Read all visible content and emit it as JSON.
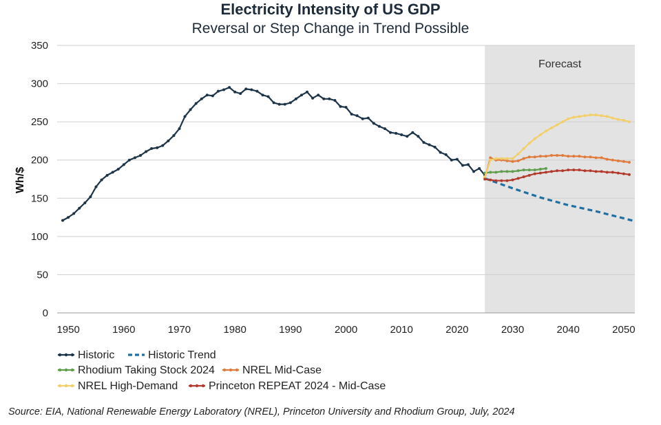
{
  "chart_data": {
    "type": "line",
    "title": "Electricity Intensity of US GDP",
    "subtitle": "Reversal or Step Change in Trend Possible",
    "xlabel": "",
    "ylabel": "Wh/$",
    "xlim": [
      1948,
      2052
    ],
    "ylim": [
      0,
      350
    ],
    "x_ticks": [
      1950,
      1960,
      1970,
      1980,
      1990,
      2000,
      2010,
      2020,
      2030,
      2040,
      2050
    ],
    "y_ticks": [
      0,
      50,
      100,
      150,
      200,
      250,
      300,
      350
    ],
    "grid": "horizontal",
    "forecast_region": {
      "label": "Forecast",
      "x_start": 2025,
      "x_end": 2052,
      "color": "#e3e3e3"
    },
    "legend_position": "bottom-left",
    "series": [
      {
        "name": "Historic",
        "color": "#1d3448",
        "style": "solid-markers",
        "x": [
          1949,
          1950,
          1951,
          1952,
          1953,
          1954,
          1955,
          1956,
          1957,
          1958,
          1959,
          1960,
          1961,
          1962,
          1963,
          1964,
          1965,
          1966,
          1967,
          1968,
          1969,
          1970,
          1971,
          1972,
          1973,
          1974,
          1975,
          1976,
          1977,
          1978,
          1979,
          1980,
          1981,
          1982,
          1983,
          1984,
          1985,
          1986,
          1987,
          1988,
          1989,
          1990,
          1991,
          1992,
          1993,
          1994,
          1995,
          1996,
          1997,
          1998,
          1999,
          2000,
          2001,
          2002,
          2003,
          2004,
          2005,
          2006,
          2007,
          2008,
          2009,
          2010,
          2011,
          2012,
          2013,
          2014,
          2015,
          2016,
          2017,
          2018,
          2019,
          2020,
          2021,
          2022,
          2023,
          2024,
          2025
        ],
        "values": [
          121,
          125,
          130,
          137,
          144,
          152,
          165,
          174,
          180,
          184,
          188,
          194,
          200,
          203,
          206,
          211,
          215,
          216,
          219,
          225,
          232,
          241,
          257,
          266,
          274,
          280,
          285,
          284,
          290,
          292,
          295,
          289,
          287,
          293,
          292,
          290,
          285,
          283,
          275,
          273,
          273,
          275,
          280,
          285,
          289,
          281,
          285,
          280,
          280,
          278,
          270,
          269,
          260,
          258,
          254,
          255,
          248,
          244,
          241,
          236,
          235,
          233,
          231,
          236,
          231,
          223,
          220,
          217,
          210,
          207,
          200,
          201,
          193,
          194,
          185,
          189,
          180
        ]
      },
      {
        "name": "Historic Trend",
        "color": "#1f6fa1",
        "style": "dashed",
        "x": [
          2025,
          2030,
          2035,
          2040,
          2045,
          2052
        ],
        "values": [
          176,
          163,
          151,
          141,
          133,
          120
        ]
      },
      {
        "name": "Rhodium Taking Stock 2024",
        "color": "#5e9e4a",
        "style": "solid-markers",
        "x": [
          2025,
          2026,
          2027,
          2028,
          2029,
          2030,
          2031,
          2032,
          2033,
          2034,
          2035,
          2036
        ],
        "values": [
          183,
          184,
          184,
          185,
          185,
          185,
          186,
          187,
          187,
          187,
          188,
          189
        ]
      },
      {
        "name": "NREL Mid-Case",
        "color": "#e07b3c",
        "style": "solid-markers",
        "x": [
          2025,
          2026,
          2027,
          2028,
          2029,
          2030,
          2031,
          2032,
          2033,
          2034,
          2035,
          2036,
          2037,
          2038,
          2039,
          2040,
          2041,
          2042,
          2043,
          2044,
          2045,
          2046,
          2047,
          2048,
          2049,
          2050,
          2051
        ],
        "values": [
          177,
          203,
          200,
          200,
          199,
          198,
          199,
          202,
          204,
          204,
          205,
          205,
          206,
          206,
          206,
          205,
          205,
          205,
          204,
          204,
          203,
          203,
          201,
          200,
          199,
          198,
          197
        ]
      },
      {
        "name": "NREL High-Demand",
        "color": "#f2cf6a",
        "style": "solid-markers",
        "x": [
          2025,
          2026,
          2027,
          2028,
          2029,
          2030,
          2031,
          2032,
          2033,
          2034,
          2035,
          2036,
          2037,
          2038,
          2039,
          2040,
          2041,
          2042,
          2043,
          2044,
          2045,
          2046,
          2047,
          2048,
          2049,
          2050,
          2051
        ],
        "values": [
          178,
          200,
          202,
          202,
          202,
          202,
          208,
          215,
          222,
          228,
          233,
          238,
          242,
          246,
          250,
          254,
          256,
          257,
          258,
          259,
          259,
          258,
          257,
          255,
          253,
          252,
          250
        ]
      },
      {
        "name": "Princeton REPEAT 2024 - Mid-Case",
        "color": "#b23a2c",
        "style": "solid-markers",
        "x": [
          2025,
          2026,
          2027,
          2028,
          2029,
          2030,
          2031,
          2032,
          2033,
          2034,
          2035,
          2036,
          2037,
          2038,
          2039,
          2040,
          2041,
          2042,
          2043,
          2044,
          2045,
          2046,
          2047,
          2048,
          2049,
          2050,
          2051
        ],
        "values": [
          175,
          174,
          173,
          173,
          173,
          174,
          176,
          178,
          180,
          182,
          183,
          184,
          185,
          186,
          186,
          187,
          187,
          187,
          186,
          186,
          185,
          185,
          184,
          184,
          183,
          182,
          181
        ]
      }
    ]
  },
  "source": "Source: EIA, National Renewable Energy Laboratory (NREL), Princeton University and Rhodium Group, July, 2024"
}
